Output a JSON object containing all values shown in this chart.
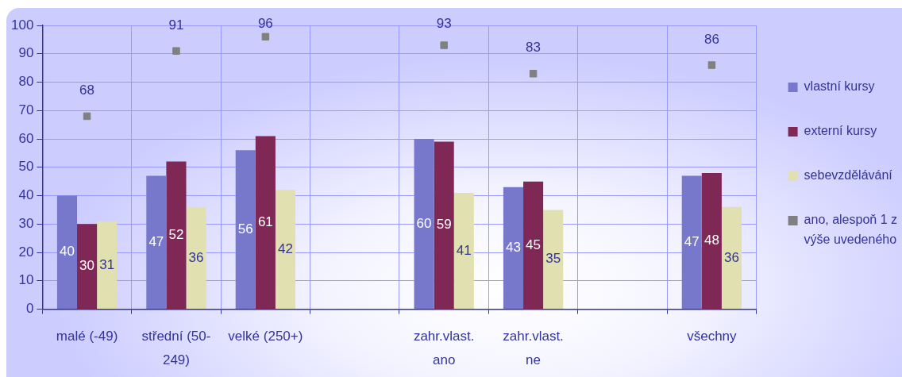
{
  "chart_data": {
    "type": "bar",
    "categories": [
      "malé (-49)",
      "střední (50-249)",
      "velké (250+)",
      null,
      "zahr.vlast. ano",
      "zahr.vlast. ne",
      null,
      "všechny"
    ],
    "series": [
      {
        "name": "vlastní kursy",
        "color": "#7777cc",
        "values": [
          40,
          47,
          56,
          null,
          60,
          43,
          null,
          47
        ]
      },
      {
        "name": "externí kursy",
        "color": "#7f2855",
        "values": [
          30,
          52,
          61,
          null,
          59,
          45,
          null,
          48
        ]
      },
      {
        "name": "sebevzdělávání",
        "color": "#e0e0b0",
        "values": [
          31,
          36,
          42,
          null,
          41,
          35,
          null,
          36
        ]
      },
      {
        "name": "ano, alespoň 1 z výše uvedeného",
        "type": "scatter",
        "marker": "square",
        "color": "#808080",
        "values": [
          68,
          91,
          96,
          null,
          93,
          83,
          null,
          86
        ]
      }
    ],
    "ylim": [
      0,
      100
    ],
    "yticks": [
      0,
      10,
      20,
      30,
      40,
      50,
      60,
      70,
      80,
      90,
      100
    ],
    "grid": true,
    "legend": "right",
    "data_labels": true
  }
}
